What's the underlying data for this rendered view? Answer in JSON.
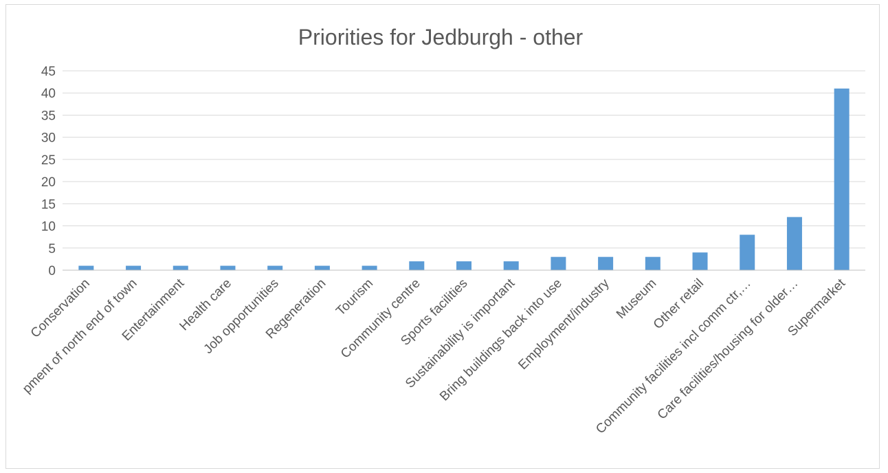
{
  "chart_data": {
    "type": "bar",
    "title": "Priorities for Jedburgh - other",
    "xlabel": "",
    "ylabel": "",
    "ylim": [
      0,
      45
    ],
    "yticks": [
      0,
      5,
      10,
      15,
      20,
      25,
      30,
      35,
      40,
      45
    ],
    "grid": true,
    "legend": "none",
    "bar_color": "#5b9bd5",
    "categories": [
      "Conservation",
      "pment of north end of town",
      "Entertainment",
      "Health care",
      "Job opportunities",
      "Regeneration",
      "Tourism",
      "Community centre",
      "Sports facilities",
      "Sustainability is important",
      "Bring buildings back into use",
      "Employment/industry",
      "Museum",
      "Other retail",
      "Community facilities incl comm ctr,…",
      "Care facilities/housing for older…",
      "Supermarket"
    ],
    "values": [
      1,
      1,
      1,
      1,
      1,
      1,
      1,
      2,
      2,
      2,
      3,
      3,
      3,
      4,
      8,
      12,
      41
    ]
  }
}
